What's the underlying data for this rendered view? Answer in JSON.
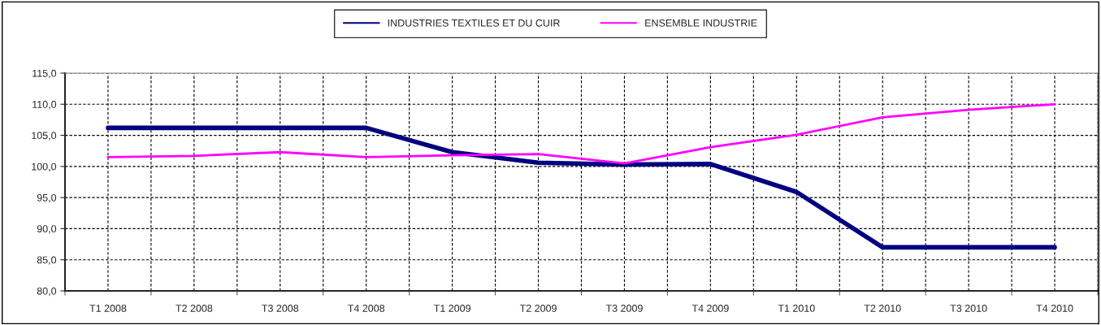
{
  "chart_data": {
    "type": "line",
    "categories": [
      "T1 2008",
      "T2 2008",
      "T3 2008",
      "T4 2008",
      "T1 2009",
      "T2 2009",
      "T3 2009",
      "T4 2009",
      "T1 2010",
      "T2 2010",
      "T3 2010",
      "T4 2010"
    ],
    "series": [
      {
        "name": "INDUSTRIES TEXTILES ET DU CUIR",
        "color": "#000080",
        "values": [
          106.2,
          106.2,
          106.2,
          106.2,
          102.3,
          100.6,
          100.3,
          100.4,
          95.9,
          87.0,
          87.0,
          87.0
        ]
      },
      {
        "name": "ENSEMBLE INDUSTRIE",
        "color": "#ff00ff",
        "values": [
          101.5,
          101.7,
          102.3,
          101.5,
          101.8,
          102.0,
          100.5,
          103.1,
          105.1,
          107.9,
          109.1,
          110.0
        ]
      }
    ],
    "ylim": [
      80,
      115
    ],
    "yticks": [
      {
        "value": 80,
        "label": "80,0"
      },
      {
        "value": 85,
        "label": "85,0"
      },
      {
        "value": 90,
        "label": "90,0"
      },
      {
        "value": 95,
        "label": "95,0"
      },
      {
        "value": 100,
        "label": "100,0"
      },
      {
        "value": 105,
        "label": "105,0"
      },
      {
        "value": 110,
        "label": "110,0"
      },
      {
        "value": 115,
        "label": "115,0"
      }
    ],
    "grid": true,
    "legend": "top",
    "marker": "none",
    "line_style": "solid"
  }
}
